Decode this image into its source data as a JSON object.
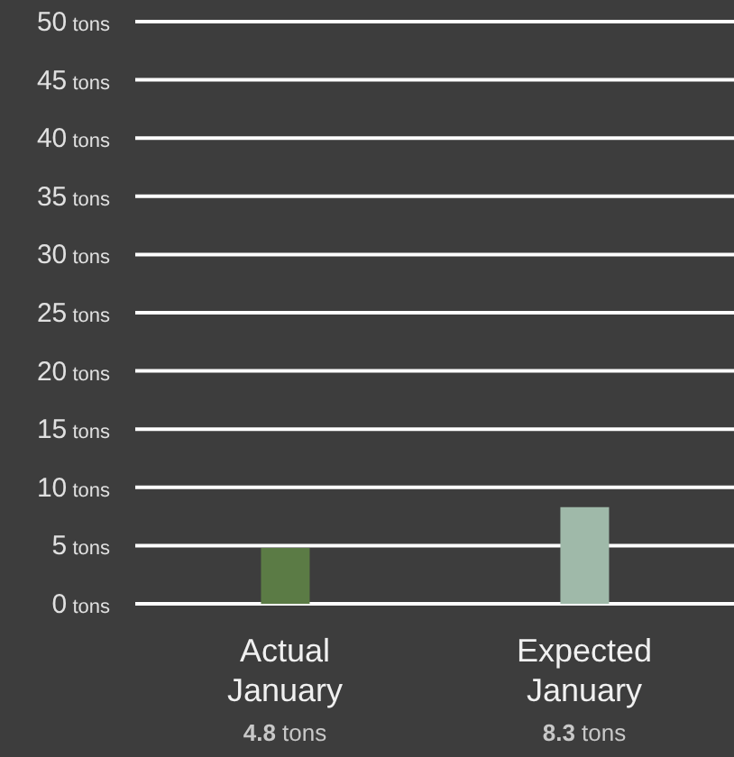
{
  "chart_data": {
    "type": "bar",
    "categories": [
      "Actual January",
      "Expected January"
    ],
    "values": [
      4.8,
      8.3
    ],
    "colors": [
      "#5b7b45",
      "#9fb9a9"
    ],
    "value_labels": [
      "4.8 tons",
      "8.3 tons"
    ],
    "ylim": [
      0,
      50
    ],
    "yticks": [
      {
        "value": 0,
        "label": "0 tons"
      },
      {
        "value": 5,
        "label": "5 tons"
      },
      {
        "value": 10,
        "label": "10 tons"
      },
      {
        "value": 15,
        "label": "15 tons"
      },
      {
        "value": 20,
        "label": "20 tons"
      },
      {
        "value": 25,
        "label": "25 tons"
      },
      {
        "value": 30,
        "label": "30 tons"
      },
      {
        "value": 35,
        "label": "35 tons"
      },
      {
        "value": 40,
        "label": "40 tons"
      },
      {
        "value": 45,
        "label": "45 tons"
      },
      {
        "value": 50,
        "label": "50 tons"
      }
    ],
    "grid": "y",
    "legend": false
  }
}
